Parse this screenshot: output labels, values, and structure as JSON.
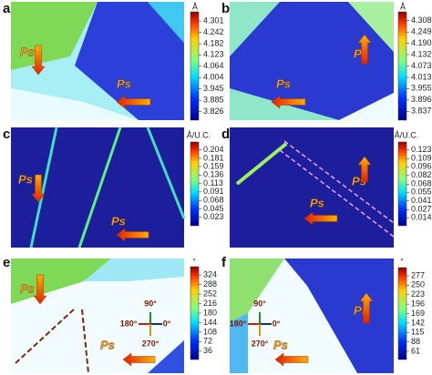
{
  "chart_data": [
    {
      "type": "heatmap",
      "label": "a",
      "unit": "Å",
      "ylim": [
        3.8,
        4.33
      ],
      "yticks": [
        4.301,
        4.242,
        4.182,
        4.123,
        4.064,
        4.004,
        3.945,
        3.885,
        3.826
      ],
      "annotations": [
        "Ps",
        "Ps"
      ]
    },
    {
      "type": "heatmap",
      "label": "b",
      "unit": "Å",
      "ylim": [
        3.81,
        4.335
      ],
      "yticks": [
        4.308,
        4.249,
        {
          "value": 4.19,
          "label": "4.190"
        },
        4.132,
        4.073,
        4.013,
        3.955,
        3.896,
        3.837
      ],
      "annotations": [
        "Ps",
        "Ps"
      ]
    },
    {
      "type": "heatmap",
      "label": "c",
      "unit": "Å/U.C.",
      "ylim": [
        0.01,
        0.215
      ],
      "yticks": [
        0.204,
        0.181,
        0.159,
        0.136,
        0.113,
        0.091,
        0.068,
        0.045,
        0.023
      ],
      "annotations": [
        "Ps",
        "Ps"
      ]
    },
    {
      "type": "heatmap",
      "label": "d",
      "unit": "Å/U.C.",
      "ylim": [
        0.007,
        0.13
      ],
      "yticks": [
        0.123,
        0.109,
        0.096,
        0.082,
        0.068,
        0.055,
        0.041,
        0.027,
        0.014
      ],
      "annotations": [
        "Ps",
        "Ps"
      ]
    },
    {
      "type": "heatmap",
      "label": "e",
      "unit": "°",
      "ylim": [
        18,
        342
      ],
      "yticks": [
        324,
        288,
        252,
        216,
        180,
        144,
        108,
        72,
        36
      ],
      "annotations": [
        "Ps",
        "Ps"
      ],
      "compass": [
        "90°",
        "180°",
        "0°",
        "270°"
      ]
    },
    {
      "type": "heatmap",
      "label": "f",
      "unit": "°",
      "ylim": [
        48,
        290
      ],
      "yticks": [
        277,
        250,
        223,
        196,
        169,
        142,
        115,
        88,
        61
      ],
      "annotations": [
        "Ps",
        "Ps"
      ],
      "compass": [
        "90°",
        "180°",
        "0°",
        "270°"
      ]
    }
  ]
}
